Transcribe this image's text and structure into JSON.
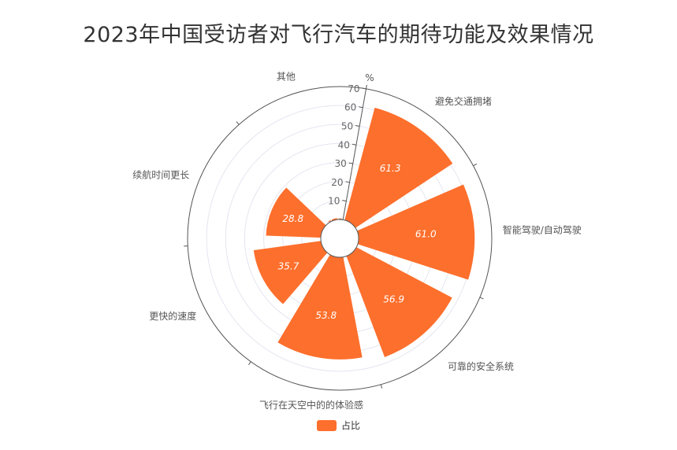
{
  "colors": {
    "bar": "#fd6f2c",
    "axis": "#555555",
    "grid": "#e4e6f0"
  },
  "chart_data": {
    "type": "bar",
    "subtype": "polar",
    "title": "2023年中国受访者对飞行汽车的期待功能及效果情况",
    "unit": "%",
    "categories": [
      "避免交通拥堵",
      "智能驾驶/自动驾驶",
      "可靠的安全系统",
      "飞行在天空中的的体验感",
      "更快的速度",
      "续航时间更长",
      "其他"
    ],
    "series": [
      {
        "name": "占比",
        "values": [
          61.3,
          61.0,
          56.9,
          53.8,
          35.7,
          28.8,
          0.8
        ]
      }
    ],
    "radial_axis": {
      "min": 0,
      "max": 70,
      "ticks": [
        "0",
        "10",
        "20",
        "30",
        "40",
        "50",
        "60",
        "70"
      ]
    },
    "legend_position": "bottom-center",
    "grid": true
  }
}
